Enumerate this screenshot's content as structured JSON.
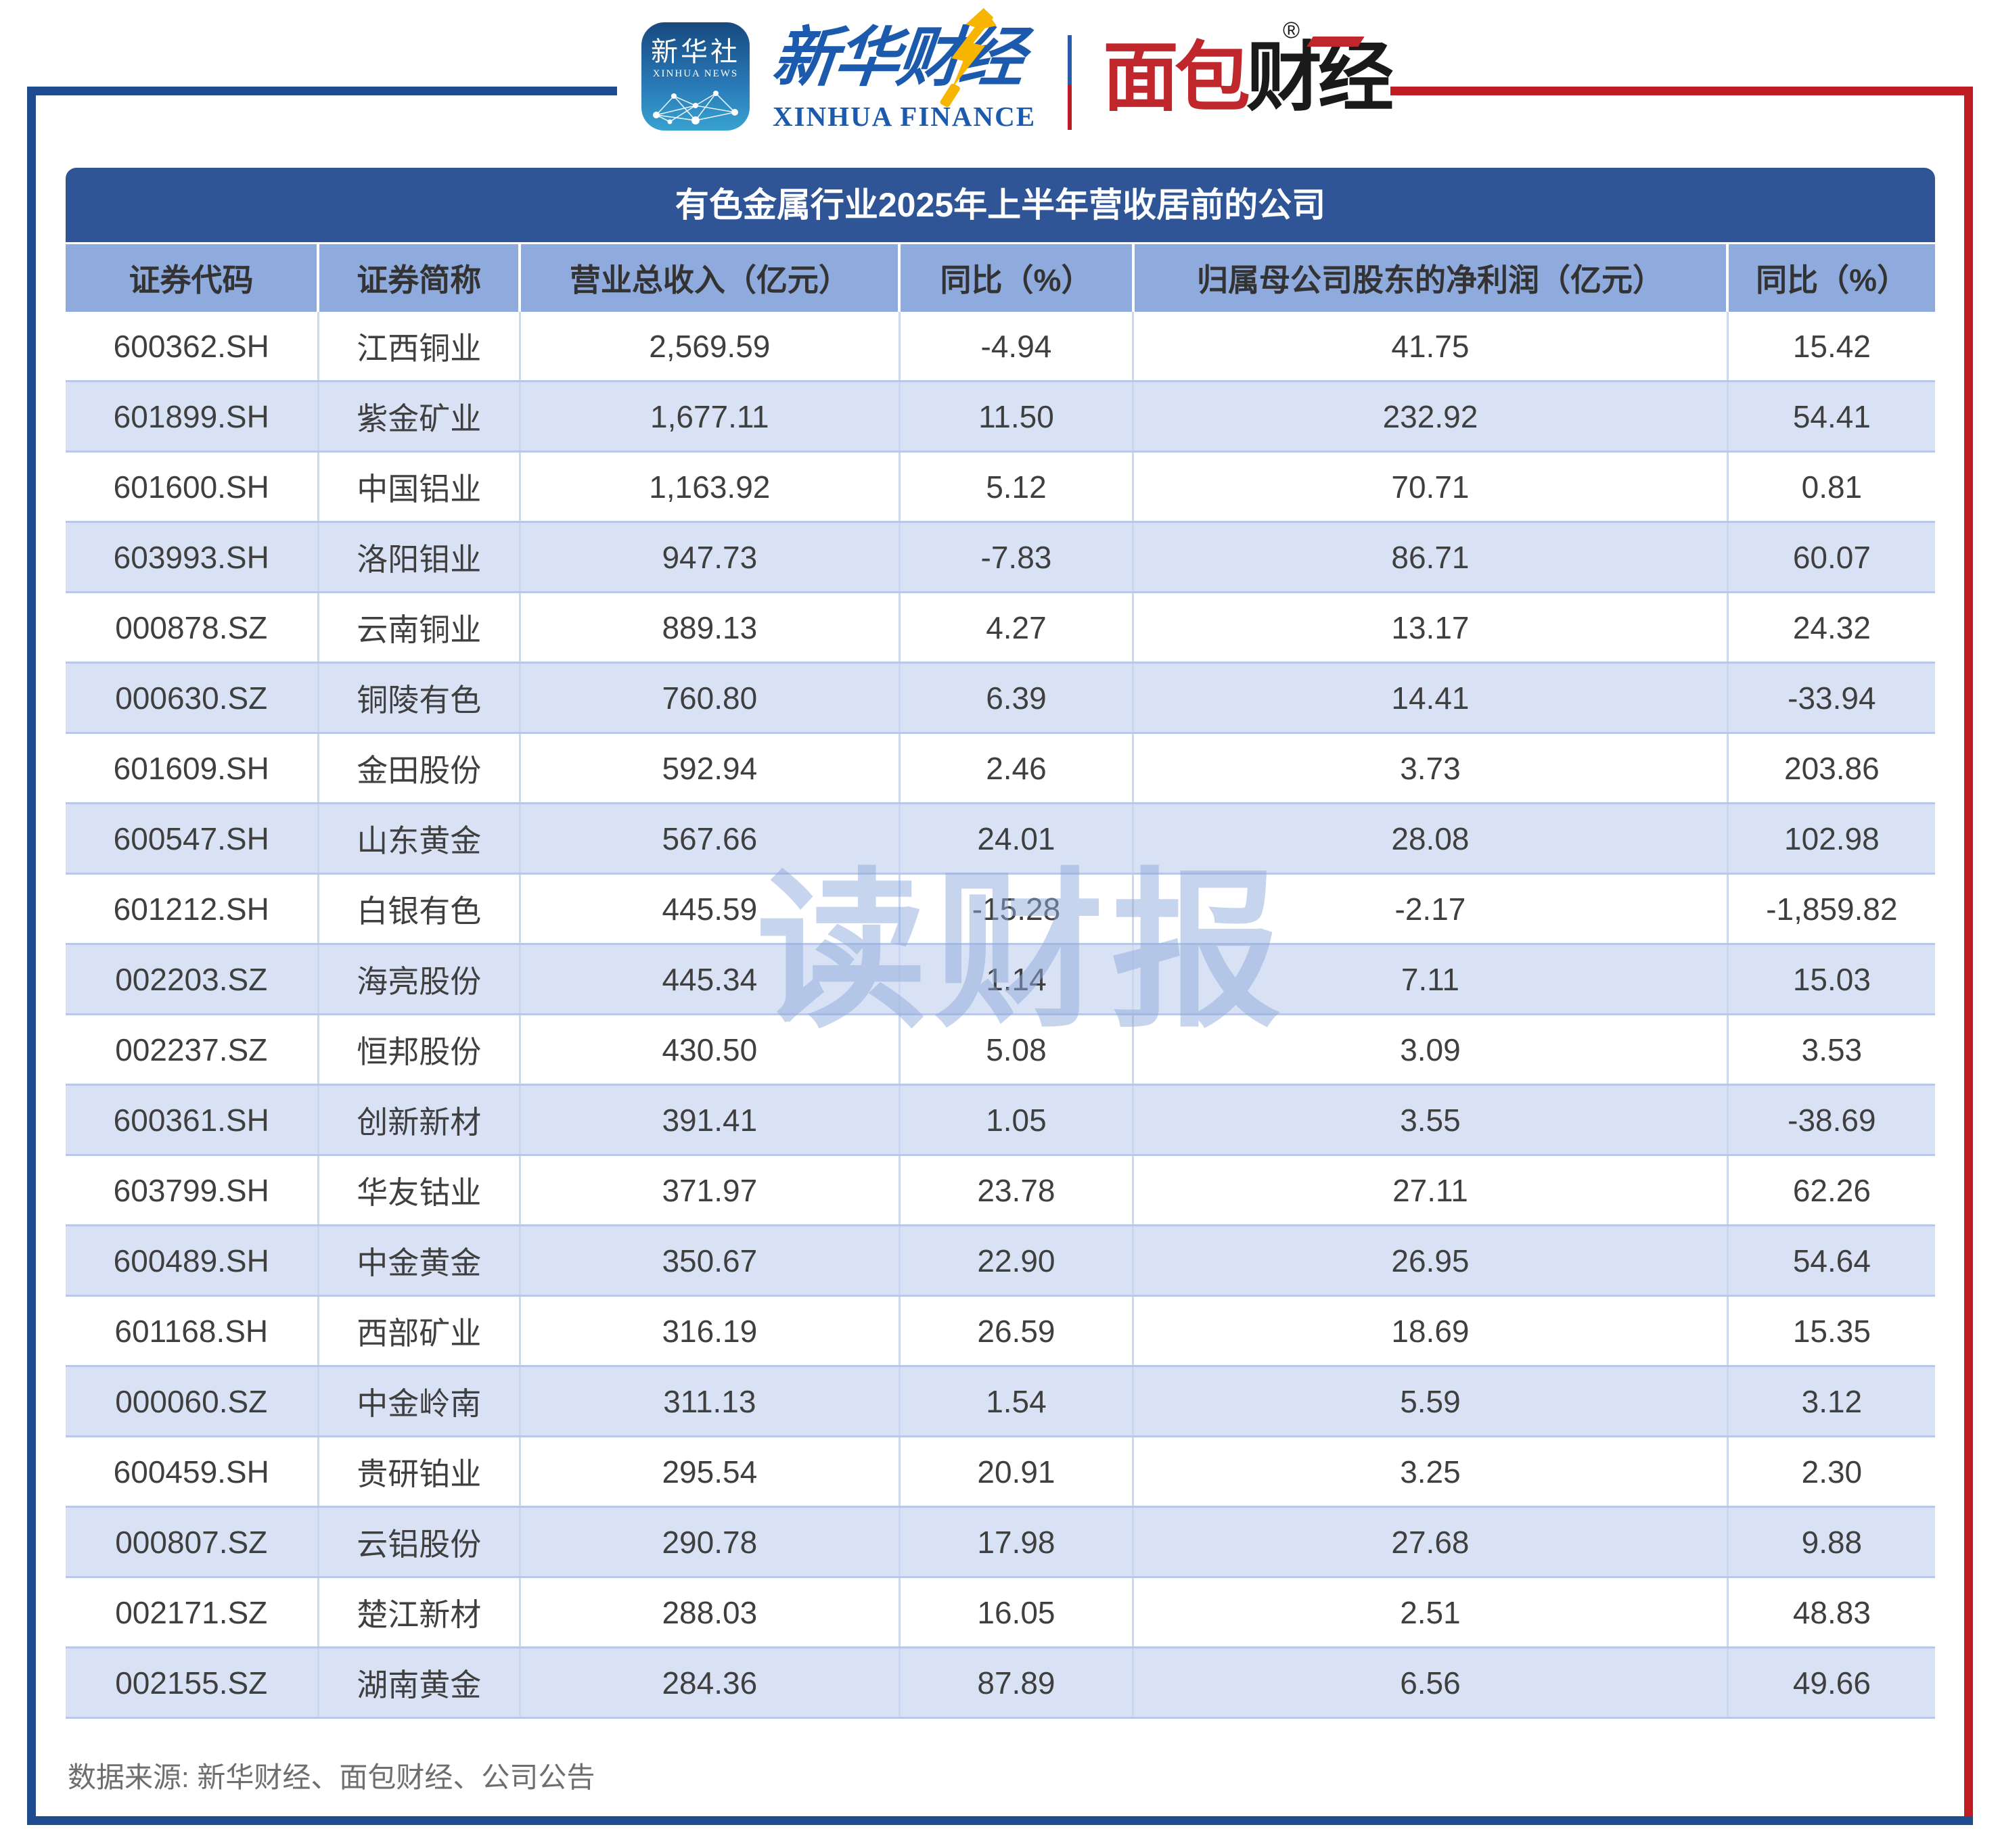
{
  "brand": {
    "xinhua_icon": {
      "line1": "新华社",
      "line2": "XINHUA NEWS"
    },
    "xinhua_finance": {
      "cn": "新华财经",
      "en": "XINHUA FINANCE"
    },
    "mianbao": {
      "cn_red": "面包",
      "cn_black": "财经",
      "reg": "®"
    }
  },
  "chart_data": {
    "type": "table",
    "title": "有色金属行业2025年上半年营收居前的公司",
    "columns": [
      "证券代码",
      "证券简称",
      "营业总收入（亿元）",
      "同比（%）",
      "归属母公司股东的净利润（亿元）",
      "同比（%）"
    ],
    "rows": [
      [
        "600362.SH",
        "江西铜业",
        "2,569.59",
        "-4.94",
        "41.75",
        "15.42"
      ],
      [
        "601899.SH",
        "紫金矿业",
        "1,677.11",
        "11.50",
        "232.92",
        "54.41"
      ],
      [
        "601600.SH",
        "中国铝业",
        "1,163.92",
        "5.12",
        "70.71",
        "0.81"
      ],
      [
        "603993.SH",
        "洛阳钼业",
        "947.73",
        "-7.83",
        "86.71",
        "60.07"
      ],
      [
        "000878.SZ",
        "云南铜业",
        "889.13",
        "4.27",
        "13.17",
        "24.32"
      ],
      [
        "000630.SZ",
        "铜陵有色",
        "760.80",
        "6.39",
        "14.41",
        "-33.94"
      ],
      [
        "601609.SH",
        "金田股份",
        "592.94",
        "2.46",
        "3.73",
        "203.86"
      ],
      [
        "600547.SH",
        "山东黄金",
        "567.66",
        "24.01",
        "28.08",
        "102.98"
      ],
      [
        "601212.SH",
        "白银有色",
        "445.59",
        "-15.28",
        "-2.17",
        "-1,859.82"
      ],
      [
        "002203.SZ",
        "海亮股份",
        "445.34",
        "1.14",
        "7.11",
        "15.03"
      ],
      [
        "002237.SZ",
        "恒邦股份",
        "430.50",
        "5.08",
        "3.09",
        "3.53"
      ],
      [
        "600361.SH",
        "创新新材",
        "391.41",
        "1.05",
        "3.55",
        "-38.69"
      ],
      [
        "603799.SH",
        "华友钴业",
        "371.97",
        "23.78",
        "27.11",
        "62.26"
      ],
      [
        "600489.SH",
        "中金黄金",
        "350.67",
        "22.90",
        "26.95",
        "54.64"
      ],
      [
        "601168.SH",
        "西部矿业",
        "316.19",
        "26.59",
        "18.69",
        "15.35"
      ],
      [
        "000060.SZ",
        "中金岭南",
        "311.13",
        "1.54",
        "5.59",
        "3.12"
      ],
      [
        "600459.SH",
        "贵研铂业",
        "295.54",
        "20.91",
        "3.25",
        "2.30"
      ],
      [
        "000807.SZ",
        "云铝股份",
        "290.78",
        "17.98",
        "27.68",
        "9.88"
      ],
      [
        "002171.SZ",
        "楚江新材",
        "288.03",
        "16.05",
        "2.51",
        "48.83"
      ],
      [
        "002155.SZ",
        "湖南黄金",
        "284.36",
        "87.89",
        "6.56",
        "49.66"
      ]
    ]
  },
  "watermark": "读财报",
  "footer": {
    "source_label": "数据来源: 新华财经、面包财经、公司公告"
  },
  "colors": {
    "title_bar": "#2F5597",
    "header_row": "#8FAADC",
    "row_alt": "#D9E2F5",
    "frame_blue": "#1F4B8F",
    "frame_red": "#BE1B23",
    "logo_blue": "#1C5AAD",
    "logo_red": "#C0272D",
    "bolt_yellow": "#F7B500"
  }
}
